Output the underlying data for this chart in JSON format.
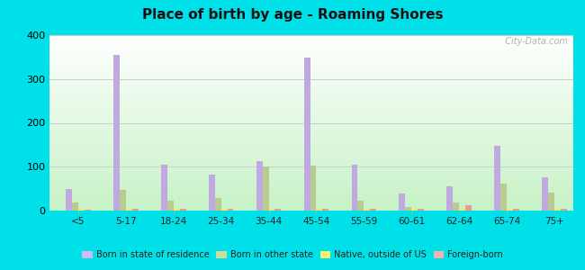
{
  "title": "Place of birth by age - Roaming Shores",
  "categories": [
    "<5",
    "5-17",
    "18-24",
    "25-34",
    "35-44",
    "45-54",
    "55-59",
    "60-61",
    "62-64",
    "65-74",
    "75+"
  ],
  "series": {
    "Born in state of residence": [
      50,
      355,
      105,
      83,
      113,
      348,
      105,
      40,
      55,
      148,
      75
    ],
    "Born in other state": [
      18,
      48,
      22,
      28,
      100,
      103,
      22,
      8,
      18,
      62,
      42
    ],
    "Native, outside of US": [
      4,
      4,
      4,
      4,
      4,
      4,
      4,
      4,
      4,
      4,
      4
    ],
    "Foreign-born": [
      3,
      4,
      4,
      4,
      4,
      4,
      4,
      4,
      13,
      4,
      4
    ]
  },
  "colors": {
    "Born in state of residence": "#c0a8e0",
    "Born in other state": "#b8cc90",
    "Native, outside of US": "#f0e870",
    "Foreign-born": "#f09898"
  },
  "legend_colors": {
    "Born in state of residence": "#d4b8f0",
    "Born in other state": "#d0dc9c",
    "Native, outside of US": "#f8f070",
    "Foreign-born": "#f8b0b0"
  },
  "ylim": [
    0,
    400
  ],
  "yticks": [
    0,
    100,
    200,
    300,
    400
  ],
  "outer_background": "#00e0e8",
  "watermark": "  City-Data.com"
}
